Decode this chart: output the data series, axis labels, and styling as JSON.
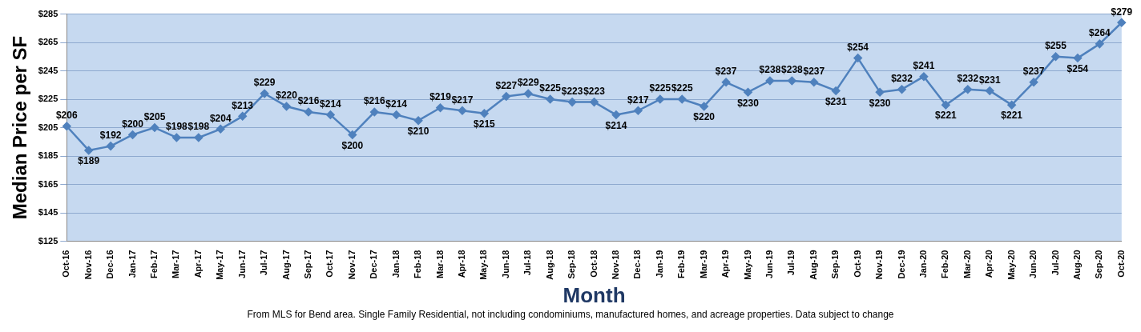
{
  "chart_data": {
    "type": "line",
    "xlabel": "Month",
    "ylabel": "Median Price per SF",
    "categories": [
      "Oct-16",
      "Nov-16",
      "Dec-16",
      "Jan-17",
      "Feb-17",
      "Mar-17",
      "Apr-17",
      "May-17",
      "Jun-17",
      "Jul-17",
      "Aug-17",
      "Sep-17",
      "Oct-17",
      "Nov-17",
      "Dec-17",
      "Jan-18",
      "Feb-18",
      "Mar-18",
      "Apr-18",
      "May-18",
      "Jun-18",
      "Jul-18",
      "Aug-18",
      "Sep-18",
      "Oct-18",
      "Nov-18",
      "Dec-18",
      "Jan-19",
      "Feb-19",
      "Mar-19",
      "Apr-19",
      "May-19",
      "Jun-19",
      "Jul-19",
      "Aug-19",
      "Sep-19",
      "Oct-19",
      "Nov-19",
      "Dec-19",
      "Jan-20",
      "Feb-20",
      "Mar-20",
      "Apr-20",
      "May-20",
      "Jun-20",
      "Jul-20",
      "Aug-20",
      "Sep-20",
      "Oct-20"
    ],
    "series": [
      {
        "color": "#4f81bd",
        "values": [
          206,
          189,
          192,
          200,
          205,
          198,
          198,
          204,
          213,
          229,
          220,
          216,
          214,
          200,
          216,
          214,
          210,
          219,
          217,
          215,
          227,
          229,
          225,
          223,
          223,
          214,
          217,
          225,
          225,
          220,
          237,
          230,
          238,
          238,
          237,
          231,
          254,
          230,
          232,
          241,
          221,
          232,
          231,
          221,
          237,
          255,
          254,
          264,
          279
        ],
        "value_labels": [
          "$206",
          "$189",
          "$192",
          "$200",
          "$205",
          "$198",
          "$198",
          "$204",
          "$213",
          "$229",
          "$220",
          "$216",
          "$214",
          "$200",
          "$216",
          "$214",
          "$210",
          "$219",
          "$217",
          "$215",
          "$227",
          "$229",
          "$225",
          "$223",
          "$223",
          "$214",
          "$217",
          "$225",
          "$225",
          "$220",
          "$237",
          "$230",
          "$238",
          "$238",
          "$237",
          "$231",
          "$254",
          "$230",
          "$232",
          "$241",
          "$221",
          "$232",
          "$231",
          "$221",
          "$237",
          "$255",
          "$254",
          "$264",
          "$279"
        ]
      }
    ],
    "ylim": [
      125,
      285
    ],
    "yticks": [
      {
        "value": 125,
        "label": "$125"
      },
      {
        "value": 145,
        "label": "$145"
      },
      {
        "value": 165,
        "label": "$165"
      },
      {
        "value": 185,
        "label": "$185"
      },
      {
        "value": 205,
        "label": "$205"
      },
      {
        "value": 225,
        "label": "$225"
      },
      {
        "value": 245,
        "label": "$245"
      },
      {
        "value": 265,
        "label": "$265"
      },
      {
        "value": 285,
        "label": "$285"
      }
    ],
    "grid": "y",
    "marker": "diamond",
    "line_style": "solid",
    "legend": false,
    "annotations": [
      "From MLS for Bend area.  Single Family Residential, not including condominiums, manufactured homes, and acreage properties.  Data subject to change"
    ]
  }
}
